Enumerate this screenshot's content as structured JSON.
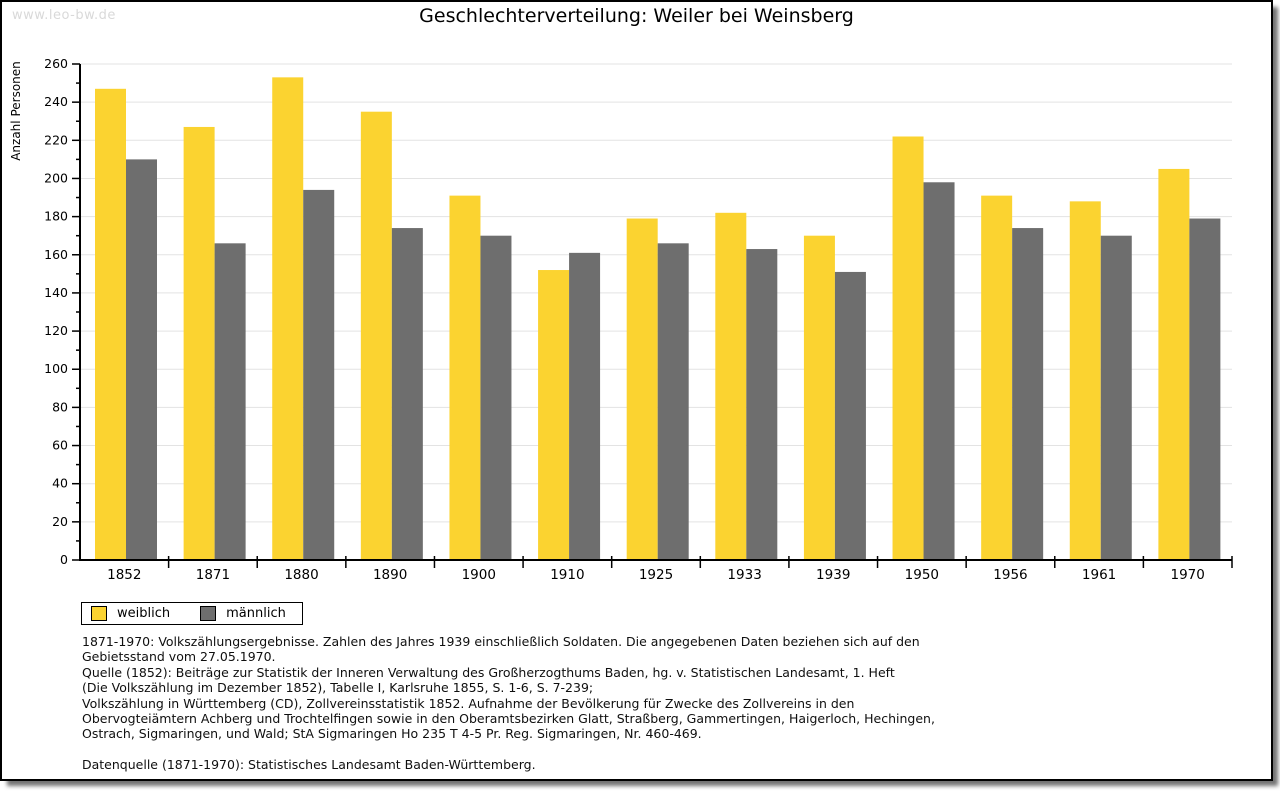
{
  "watermark": "www.leo-bw.de",
  "title": "Geschlechterverteilung: Weiler bei Weinsberg",
  "colors": {
    "female": "#FBD330",
    "male": "#6E6E6E",
    "gridline": "#e3e3e3",
    "axis": "#000000",
    "watermark": "#d9d9d9"
  },
  "chart_data": {
    "type": "bar",
    "title": "Geschlechterverteilung: Weiler bei Weinsberg",
    "xlabel": "",
    "ylabel": "Anzahl Personen",
    "categories": [
      "1852",
      "1871",
      "1880",
      "1890",
      "1900",
      "1910",
      "1925",
      "1933",
      "1939",
      "1950",
      "1956",
      "1961",
      "1970"
    ],
    "series": [
      {
        "name": "weiblich",
        "color": "#FBD330",
        "values": [
          247,
          227,
          253,
          235,
          191,
          152,
          179,
          182,
          170,
          222,
          191,
          188,
          205
        ]
      },
      {
        "name": "männlich",
        "color": "#6E6E6E",
        "values": [
          210,
          166,
          194,
          174,
          170,
          161,
          166,
          163,
          151,
          198,
          174,
          170,
          179
        ]
      }
    ],
    "ylim": [
      0,
      260
    ],
    "ytick_step": 20,
    "yminor_step": 10,
    "grid": true,
    "legend_position": "bottom-left"
  },
  "footer": {
    "notes": [
      "1871-1970: Volkszählungsergebnisse. Zahlen des Jahres 1939 einschließlich Soldaten. Die angegebenen Daten beziehen sich auf den",
      "Gebietsstand vom 27.05.1970.",
      "Quelle (1852): Beiträge zur Statistik der Inneren Verwaltung des Großherzogthums Baden, hg. v. Statistischen Landesamt, 1. Heft",
      "(Die Volkszählung im Dezember 1852), Tabelle I, Karlsruhe 1855, S. 1-6, S. 7-239;",
      "Volkszählung in Württemberg (CD), Zollvereinsstatistik 1852. Aufnahme der Bevölkerung für Zwecke des Zollvereins in den",
      "Obervogteiämtern Achberg und Trochtelfingen sowie in den Oberamtsbezirken Glatt, Straßberg, Gammertingen, Haigerloch, Hechingen,",
      "Ostrach, Sigmaringen, und Wald; StA Sigmaringen Ho 235 T 4-5 Pr. Reg. Sigmaringen, Nr. 460-469."
    ],
    "datasource": "Datenquelle (1871-1970): Statistisches Landesamt Baden-Württemberg."
  }
}
